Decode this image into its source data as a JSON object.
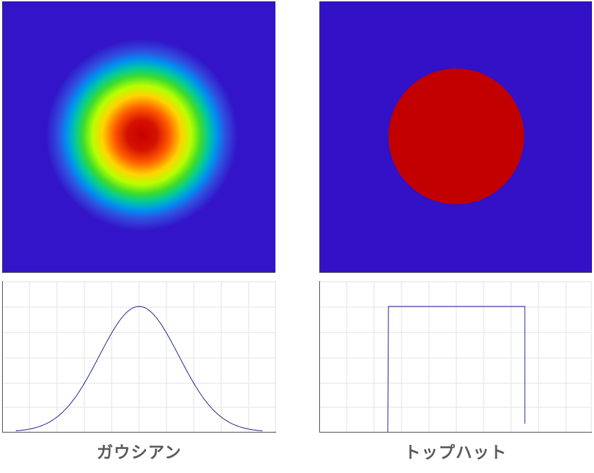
{
  "panels": {
    "gaussian": {
      "label": "ガウシアン",
      "profile_type": "gaussian",
      "heatmap_colormap": "jet"
    },
    "tophat": {
      "label": "トップハット",
      "profile_type": "top-hat",
      "heatmap_colormap": "jet"
    }
  },
  "colors": {
    "background_blue": "#3311c6",
    "peak_red": "#c20000",
    "profile_line": "#1a1a8c",
    "grid": "#e2e2e8",
    "axis": "#4a4a4a",
    "caption": "#5a5a5a"
  }
}
